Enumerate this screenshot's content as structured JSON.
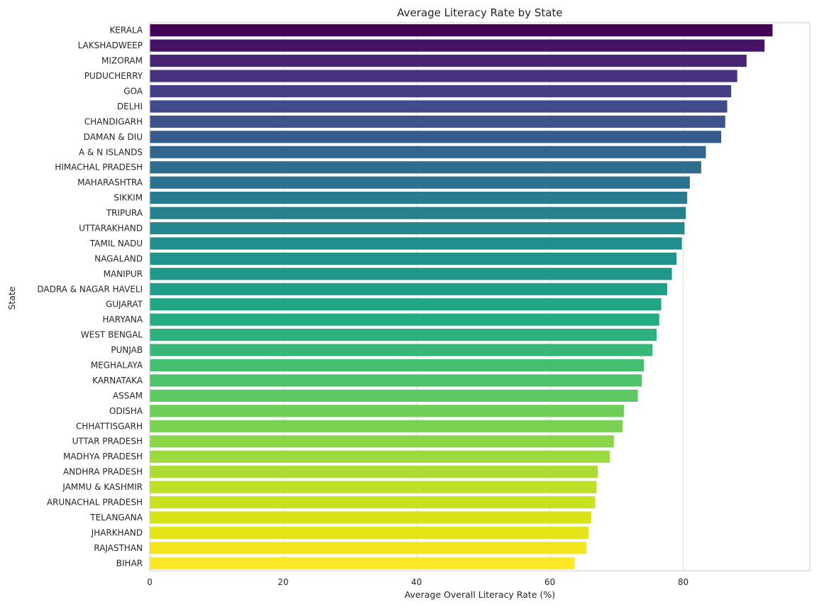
{
  "chart_data": {
    "type": "bar",
    "orientation": "horizontal",
    "title": "Average Literacy Rate by State",
    "xlabel": "Average Overall Literacy Rate (%)",
    "ylabel": "State",
    "xlim": [
      0,
      99
    ],
    "xticks": [
      0,
      20,
      40,
      60,
      80
    ],
    "grid": "x-only",
    "colormap": "viridis",
    "categories": [
      "KERALA",
      "LAKSHADWEEP",
      "MIZORAM",
      "PUDUCHERRY",
      "GOA",
      "DELHI",
      "CHANDIGARH",
      "DAMAN & DIU",
      "A & N ISLANDS",
      "HIMACHAL PRADESH",
      "MAHARASHTRA",
      "SIKKIM",
      "TRIPURA",
      "UTTARAKHAND",
      "TAMIL NADU",
      "NAGALAND",
      "MANIPUR",
      "DADRA & NAGAR HAVELI",
      "GUJARAT",
      "HARYANA",
      "WEST BENGAL",
      "PUNJAB",
      "MEGHALAYA",
      "KARNATAKA",
      "ASSAM",
      "ODISHA",
      "CHHATTISGARH",
      "UTTAR PRADESH",
      "MADHYA PRADESH",
      "ANDHRA PRADESH",
      "JAMMU & KASHMIR",
      "ARUNACHAL PRADESH",
      "TELANGANA",
      "JHARKHAND",
      "RAJASTHAN",
      "BIHAR"
    ],
    "values": [
      93.4,
      92.2,
      89.5,
      88.1,
      87.2,
      86.6,
      86.3,
      85.7,
      83.4,
      82.7,
      81.0,
      80.6,
      80.4,
      80.2,
      79.8,
      79.0,
      78.3,
      77.6,
      76.7,
      76.4,
      76.0,
      75.4,
      74.1,
      73.8,
      73.2,
      71.1,
      70.9,
      69.6,
      69.0,
      67.2,
      67.0,
      66.8,
      66.2,
      65.8,
      65.5,
      63.7
    ],
    "colors": [
      "#440154",
      "#461466",
      "#482475",
      "#46327e",
      "#433e85",
      "#3f4a8a",
      "#3b528b",
      "#365c8d",
      "#32658e",
      "#2e6d8e",
      "#2c728e",
      "#297a8e",
      "#26818e",
      "#24878e",
      "#228d8d",
      "#20928c",
      "#1f988b",
      "#1f9e89",
      "#21a585",
      "#25ab82",
      "#2db27d",
      "#37b878",
      "#44bf70",
      "#4ec36b",
      "#5ec962",
      "#6ece58",
      "#7ad151",
      "#8bd646",
      "#9bd93c",
      "#abdc32",
      "#bddf26",
      "#cae11f",
      "#d8e219",
      "#e5e419",
      "#f1e51d",
      "#fde725"
    ]
  }
}
